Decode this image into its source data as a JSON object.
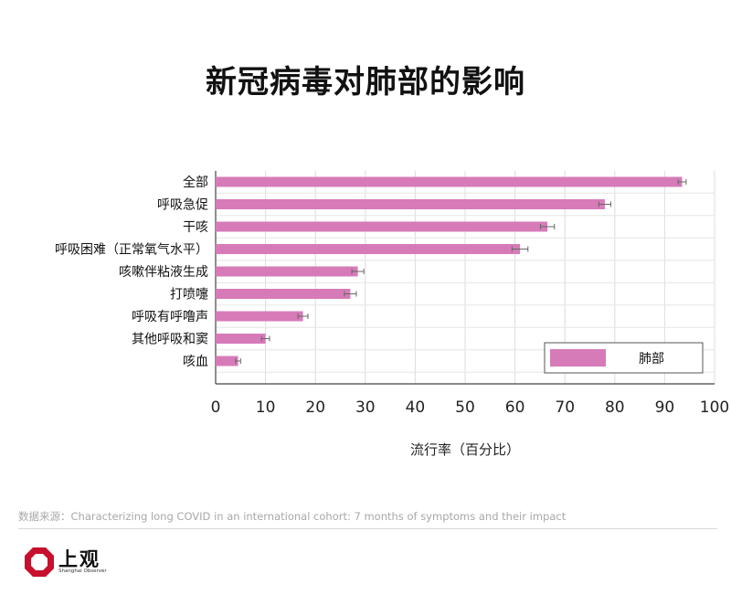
{
  "chart_data": {
    "type": "bar",
    "orientation": "horizontal",
    "title": "新冠病毒对肺部的影响",
    "xlabel": "流行率（百分比）",
    "ylabel": "",
    "xlim": [
      0,
      100
    ],
    "x_ticks": [
      "0",
      "10",
      "20",
      "30",
      "40",
      "50",
      "60",
      "70",
      "80",
      "90",
      "100"
    ],
    "grid": true,
    "legend_position": "bottom-right",
    "categories": [
      "全部",
      "呼吸急促",
      "干咳",
      "呼吸困难（正常氧气水平）",
      "咳嗽伴粘液生成",
      "打喷嚏",
      "呼吸有呼噜声",
      "其他呼吸和窦",
      "咳血"
    ],
    "series": [
      {
        "name": "肺部",
        "color": "#d67bb8",
        "values": [
          93.5,
          78,
          66.5,
          61,
          28.5,
          27,
          17.5,
          10,
          4.5
        ],
        "error": [
          0.8,
          1.2,
          1.4,
          1.6,
          1.2,
          1.2,
          1.0,
          0.8,
          0.5
        ]
      }
    ]
  },
  "source": "数据来源：Characterizing long COVID in an international cohort: 7 months of symptoms and their impact",
  "logo": {
    "name": "上观",
    "subtitle": "Shanghai Observer",
    "color": "#c8102e"
  }
}
